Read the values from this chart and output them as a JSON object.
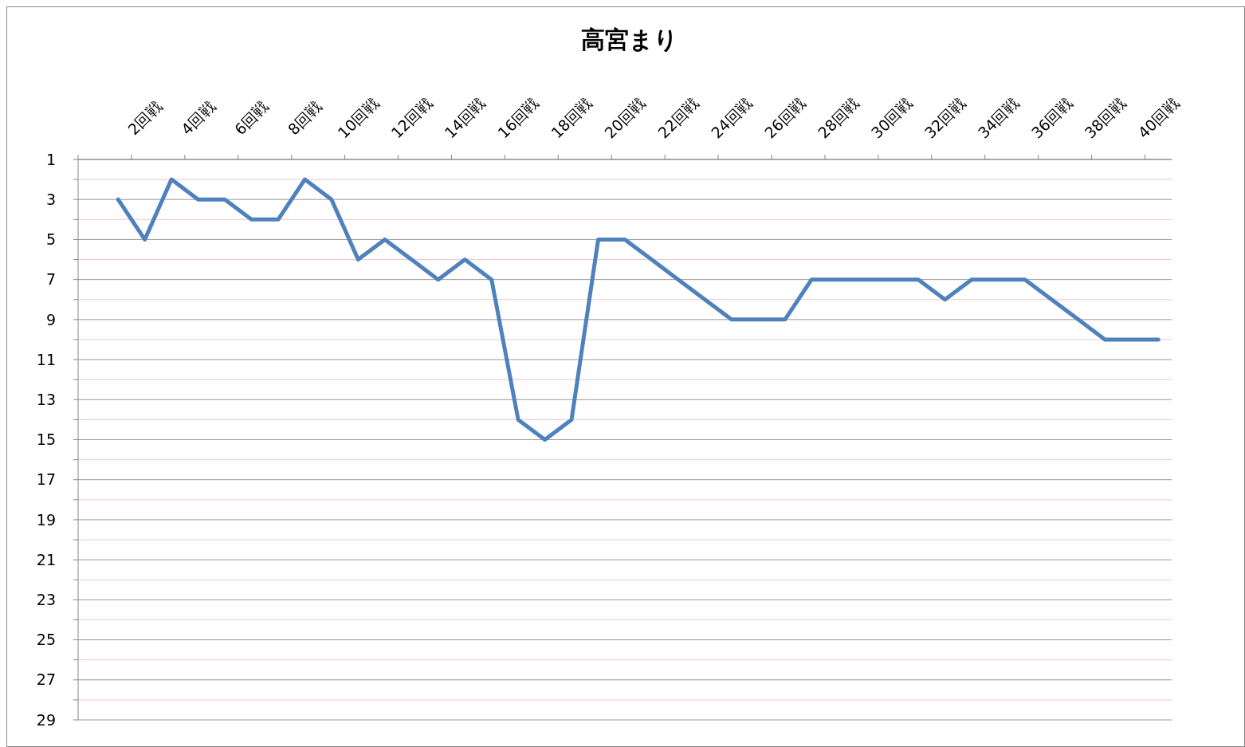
{
  "chart_data": {
    "type": "line",
    "title": "高宮まり",
    "categories": [
      null,
      null,
      "2回戦",
      null,
      "4回戦",
      null,
      "6回戦",
      null,
      "8回戦",
      null,
      "10回戦",
      null,
      "12回戦",
      null,
      "14回戦",
      null,
      "16回戦",
      null,
      "18回戦",
      null,
      "20回戦",
      null,
      "22回戦",
      null,
      "24回戦",
      null,
      "26回戦",
      null,
      "28回戦",
      null,
      "30回戦",
      null,
      "32回戦",
      null,
      "34回戦",
      null,
      "36回戦",
      null,
      "38回戦",
      null,
      "40回戦"
    ],
    "series": [
      {
        "color": "#4f81bd",
        "values": [
          null,
          3,
          5,
          2,
          3,
          3,
          4,
          4,
          2,
          3,
          6,
          5,
          6,
          7,
          6,
          7,
          14,
          15,
          14,
          5,
          5,
          6,
          7,
          8,
          9,
          9,
          9,
          7,
          7,
          7,
          7,
          7,
          8,
          7,
          7,
          7,
          8,
          9,
          10,
          10,
          10
        ]
      }
    ],
    "ylim": [
      29,
      1
    ],
    "yticks": [
      1,
      {
        "value": 2,
        "label": null
      },
      3,
      {
        "value": 4,
        "label": null
      },
      5,
      {
        "value": 6,
        "label": null
      },
      7,
      {
        "value": 8,
        "label": null
      },
      9,
      {
        "value": 10,
        "label": null
      },
      11,
      {
        "value": 12,
        "label": null
      },
      13,
      {
        "value": 14,
        "label": null
      },
      15,
      {
        "value": 16,
        "label": null
      },
      17,
      {
        "value": 18,
        "label": null
      },
      19,
      {
        "value": 20,
        "label": null
      },
      21,
      {
        "value": 22,
        "label": null
      },
      23,
      {
        "value": 24,
        "label": null
      },
      25,
      {
        "value": 26,
        "label": null
      },
      27,
      {
        "value": 28,
        "label": null
      },
      29
    ],
    "grid": "y",
    "marker": "none",
    "line_style": "solid"
  }
}
